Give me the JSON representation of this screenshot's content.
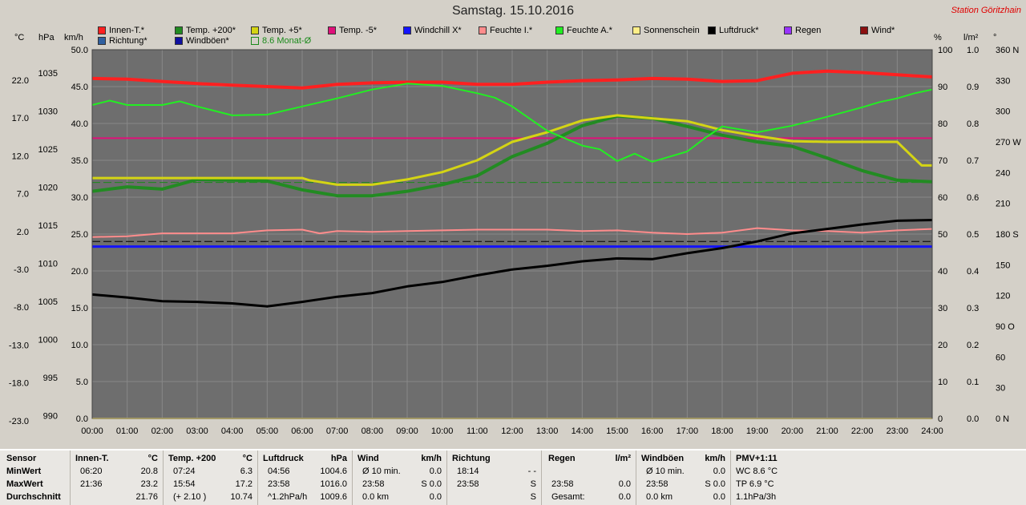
{
  "title": "Samstag. 15.10.2016",
  "station": "Station Göritzhain",
  "legend": [
    {
      "label": "Innen-T.*",
      "color": "#ff2020"
    },
    {
      "label": "Temp. +200*",
      "color": "#228b22"
    },
    {
      "label": "Temp. +5*",
      "color": "#d4d414"
    },
    {
      "label": "Temp. -5*",
      "color": "#e0107a"
    },
    {
      "label": "Windchill X*",
      "color": "#1414ff"
    },
    {
      "label": "Feuchte I.*",
      "color": "#ff8c8c"
    },
    {
      "label": "Feuchte A.*",
      "color": "#22ee22"
    },
    {
      "label": "Sonnenschein",
      "color": "#ffee88"
    },
    {
      "label": "Luftdruck*",
      "color": "#000000"
    },
    {
      "label": "Regen",
      "color": "#9933ff"
    },
    {
      "label": "Wind*",
      "color": "#8b1010"
    },
    {
      "label": "Richtung*",
      "color": "#3060a0"
    },
    {
      "label": "Windböen*",
      "color": "#1010a0"
    },
    {
      "label": "8.6 Monat-Ø",
      "color": "#1a8a1a",
      "hollow": true
    }
  ],
  "units": {
    "c": "°C",
    "hpa": "hPa",
    "kmh": "km/h",
    "pct": "%",
    "wm2": "l/m²",
    "deg": "°"
  },
  "chart_data": {
    "type": "line",
    "x_ticks": [
      "00:00",
      "01:00",
      "02:00",
      "03:00",
      "04:00",
      "05:00",
      "06:00",
      "07:00",
      "08:00",
      "09:00",
      "10:00",
      "11:00",
      "12:00",
      "13:00",
      "14:00",
      "15:00",
      "16:00",
      "17:00",
      "18:00",
      "19:00",
      "20:00",
      "21:00",
      "22:00",
      "23:00",
      "24:00"
    ],
    "y_axes": {
      "celsius": [
        "22.0",
        "17.0",
        "12.0",
        "7.0",
        "2.0",
        "-3.0",
        "-8.0",
        "-13.0",
        "-18.0",
        "-23.0"
      ],
      "hpa": [
        "1035",
        "1030",
        "1025",
        "1020",
        "1015",
        "1010",
        "1005",
        "1000",
        "995",
        "990"
      ],
      "kmh": [
        "50.0",
        "45.0",
        "40.0",
        "35.0",
        "30.0",
        "25.0",
        "20.0",
        "15.0",
        "10.0",
        "5.0",
        "0.0"
      ],
      "pct": [
        "100",
        "90",
        "80",
        "70",
        "60",
        "50",
        "40",
        "30",
        "20",
        "10",
        "0"
      ],
      "rain": [
        "1.0",
        "0.9",
        "0.8",
        "0.7",
        "0.6",
        "0.5",
        "0.4",
        "0.3",
        "0.2",
        "0.1",
        "0.0"
      ],
      "dir": [
        "360 N",
        "330",
        "300",
        "270 W",
        "240",
        "210",
        "180 S",
        "150",
        "120",
        "90 O",
        "60",
        "30",
        "0 N"
      ]
    },
    "kmh_range": [
      0,
      50
    ],
    "grid": true,
    "series": [
      {
        "name": "Innen-T.*",
        "axis": "kmh",
        "color": "#ff2020",
        "width": 4,
        "x": [
          0,
          1,
          2,
          3,
          4,
          5,
          6,
          7,
          8,
          9,
          10,
          11,
          12,
          13,
          14,
          15,
          16,
          17,
          18,
          19,
          20,
          21,
          22,
          23,
          24
        ],
        "y": [
          46.1,
          46.0,
          45.7,
          45.4,
          45.2,
          45.0,
          44.8,
          45.3,
          45.5,
          45.6,
          45.6,
          45.3,
          45.3,
          45.6,
          45.8,
          45.9,
          46.1,
          46.0,
          45.7,
          45.8,
          46.8,
          47.1,
          46.9,
          46.6,
          46.3
        ]
      },
      {
        "name": "Temp. +200*",
        "axis": "kmh",
        "color": "#228b22",
        "width": 4,
        "x": [
          0,
          1,
          2,
          3,
          4,
          5,
          6,
          7,
          8,
          9,
          10,
          11,
          12,
          13,
          14,
          15,
          16,
          17,
          18,
          19,
          20,
          21,
          22,
          23,
          24
        ],
        "y": [
          30.8,
          31.4,
          31.1,
          32.4,
          32.3,
          32.2,
          31.0,
          30.2,
          30.2,
          30.8,
          31.7,
          32.9,
          35.5,
          37.3,
          39.7,
          41.0,
          40.7,
          39.6,
          38.4,
          37.5,
          36.9,
          35.3,
          33.6,
          32.3,
          32.1
        ]
      },
      {
        "name": "Temp. +5*",
        "axis": "kmh",
        "color": "#d4d414",
        "width": 3,
        "x": [
          0,
          1,
          2,
          3,
          4,
          5,
          6,
          6.2,
          7,
          8,
          9,
          10,
          11,
          12,
          13,
          14,
          15,
          16,
          17,
          18,
          19,
          20,
          21,
          22,
          23,
          23.5,
          23.7,
          24
        ],
        "y": [
          32.6,
          32.6,
          32.6,
          32.6,
          32.6,
          32.6,
          32.6,
          32.3,
          31.7,
          31.7,
          32.4,
          33.4,
          35.0,
          37.5,
          38.8,
          40.4,
          41.1,
          40.7,
          40.3,
          39.1,
          38.3,
          37.6,
          37.5,
          37.5,
          37.5,
          35.2,
          34.3,
          34.3
        ]
      },
      {
        "name": "Feuchte A.*",
        "axis": "kmh",
        "color": "#22ee22",
        "width": 2,
        "x": [
          0,
          0.5,
          1,
          2,
          2.5,
          3,
          4,
          5,
          6,
          7,
          8,
          9,
          10,
          11,
          11.5,
          12,
          13,
          13.5,
          14,
          14.5,
          15,
          15.5,
          16,
          16.5,
          17,
          17.5,
          18,
          19,
          20,
          21,
          22,
          22.5,
          23,
          23.5,
          24
        ],
        "y": [
          42.5,
          43.1,
          42.5,
          42.5,
          43.0,
          42.3,
          41.1,
          41.2,
          42.3,
          43.4,
          44.6,
          45.4,
          45.1,
          44.1,
          43.5,
          42.3,
          39.0,
          38.0,
          37.0,
          36.5,
          34.9,
          35.9,
          34.8,
          35.5,
          36.2,
          38.0,
          39.6,
          38.8,
          39.7,
          40.9,
          42.2,
          42.9,
          43.4,
          44.1,
          44.6
        ]
      },
      {
        "name": "Feuchte I.*",
        "axis": "kmh",
        "color": "#ff8c8c",
        "width": 2,
        "x": [
          0,
          1,
          2,
          3,
          4,
          5,
          6,
          6.5,
          7,
          8,
          9,
          10,
          11,
          12,
          13,
          14,
          15,
          16,
          17,
          18,
          19,
          20,
          21,
          22,
          23,
          24
        ],
        "y": [
          24.6,
          24.7,
          25.1,
          25.1,
          25.1,
          25.5,
          25.6,
          25.1,
          25.4,
          25.3,
          25.4,
          25.5,
          25.6,
          25.6,
          25.6,
          25.4,
          25.5,
          25.2,
          25.0,
          25.2,
          25.8,
          25.5,
          25.4,
          25.2,
          25.5,
          25.7
        ]
      },
      {
        "name": "Windchill X*",
        "axis": "kmh",
        "color": "#1414ff",
        "width": 3,
        "x": [
          0,
          24
        ],
        "y": [
          23.3,
          23.3
        ]
      },
      {
        "name": "Luftdruck*",
        "axis": "kmh",
        "color": "#000000",
        "width": 3,
        "x": [
          0,
          1,
          2,
          3,
          4,
          5,
          6,
          7,
          8,
          9,
          10,
          11,
          12,
          13,
          14,
          15,
          16,
          17,
          18,
          19,
          20,
          21,
          22,
          23,
          24
        ],
        "y": [
          16.8,
          16.4,
          15.9,
          15.8,
          15.6,
          15.2,
          15.8,
          16.5,
          17.0,
          17.9,
          18.5,
          19.4,
          20.2,
          20.7,
          21.3,
          21.7,
          21.6,
          22.4,
          23.1,
          24.0,
          25.1,
          25.7,
          26.3,
          26.8,
          26.9
        ]
      },
      {
        "name": "Sonnenschein",
        "axis": "kmh",
        "color": "#ffee88",
        "width": 2,
        "x": [
          0,
          24
        ],
        "y": [
          0,
          0
        ]
      }
    ],
    "reference_lines": [
      {
        "name": "Temp. -5*",
        "axis": "kmh",
        "value": 38.0,
        "color": "#e0107a",
        "style": "solid"
      },
      {
        "name": "8.6 Monat-Ø",
        "axis": "kmh",
        "value": 32.0,
        "color": "#1a8a1a",
        "style": "dashed"
      },
      {
        "name": "dash-black",
        "axis": "kmh",
        "value": 24.0,
        "color": "#000000",
        "style": "dashed"
      }
    ]
  },
  "stats": {
    "sensor": {
      "header": "Sensor",
      "rows": [
        "MinWert",
        "MaxWert",
        "Durchschnitt"
      ]
    },
    "innen": {
      "header": "Innen-T.",
      "unit": "°C",
      "rows": [
        [
          "06:20",
          "20.8"
        ],
        [
          "21:36",
          "23.2"
        ],
        [
          "",
          "21.76"
        ]
      ]
    },
    "temp200": {
      "header": "Temp. +200",
      "unit": "°C",
      "rows": [
        [
          "07:24",
          "6.3"
        ],
        [
          "15:54",
          "17.2"
        ],
        [
          "(+ 2.10 )",
          "10.74"
        ]
      ]
    },
    "luftdruck": {
      "header": "Luftdruck",
      "unit": "hPa",
      "rows": [
        [
          "04:56",
          "1004.6"
        ],
        [
          "23:58",
          "1016.0"
        ],
        [
          "^1.2hPa/h",
          "1009.6"
        ]
      ]
    },
    "wind": {
      "header": "Wind",
      "unit": "km/h",
      "rows": [
        [
          "Ø 10 min.",
          "0.0"
        ],
        [
          "23:58",
          "S 0.0"
        ],
        [
          "0.0 km",
          "0.0"
        ]
      ]
    },
    "richtung": {
      "header": "Richtung",
      "unit": "",
      "rows": [
        [
          "18:14",
          "- -"
        ],
        [
          "23:58",
          "S"
        ],
        [
          "",
          "S"
        ]
      ]
    },
    "regen": {
      "header": "Regen",
      "unit": "l/m²",
      "rows": [
        [
          "",
          ""
        ],
        [
          "23:58",
          "0.0"
        ],
        [
          "Gesamt:",
          "0.0"
        ]
      ]
    },
    "windboen": {
      "header": "Windböen",
      "unit": "km/h",
      "rows": [
        [
          "Ø 10 min.",
          "0.0"
        ],
        [
          "23:58",
          "S 0.0"
        ],
        [
          "0.0 km",
          "0.0"
        ]
      ]
    },
    "pmv": {
      "header": "PMV+1:11",
      "rows": [
        "WC 8.6 °C",
        "TP 6.9 °C",
        "1.1hPa/3h"
      ]
    }
  }
}
